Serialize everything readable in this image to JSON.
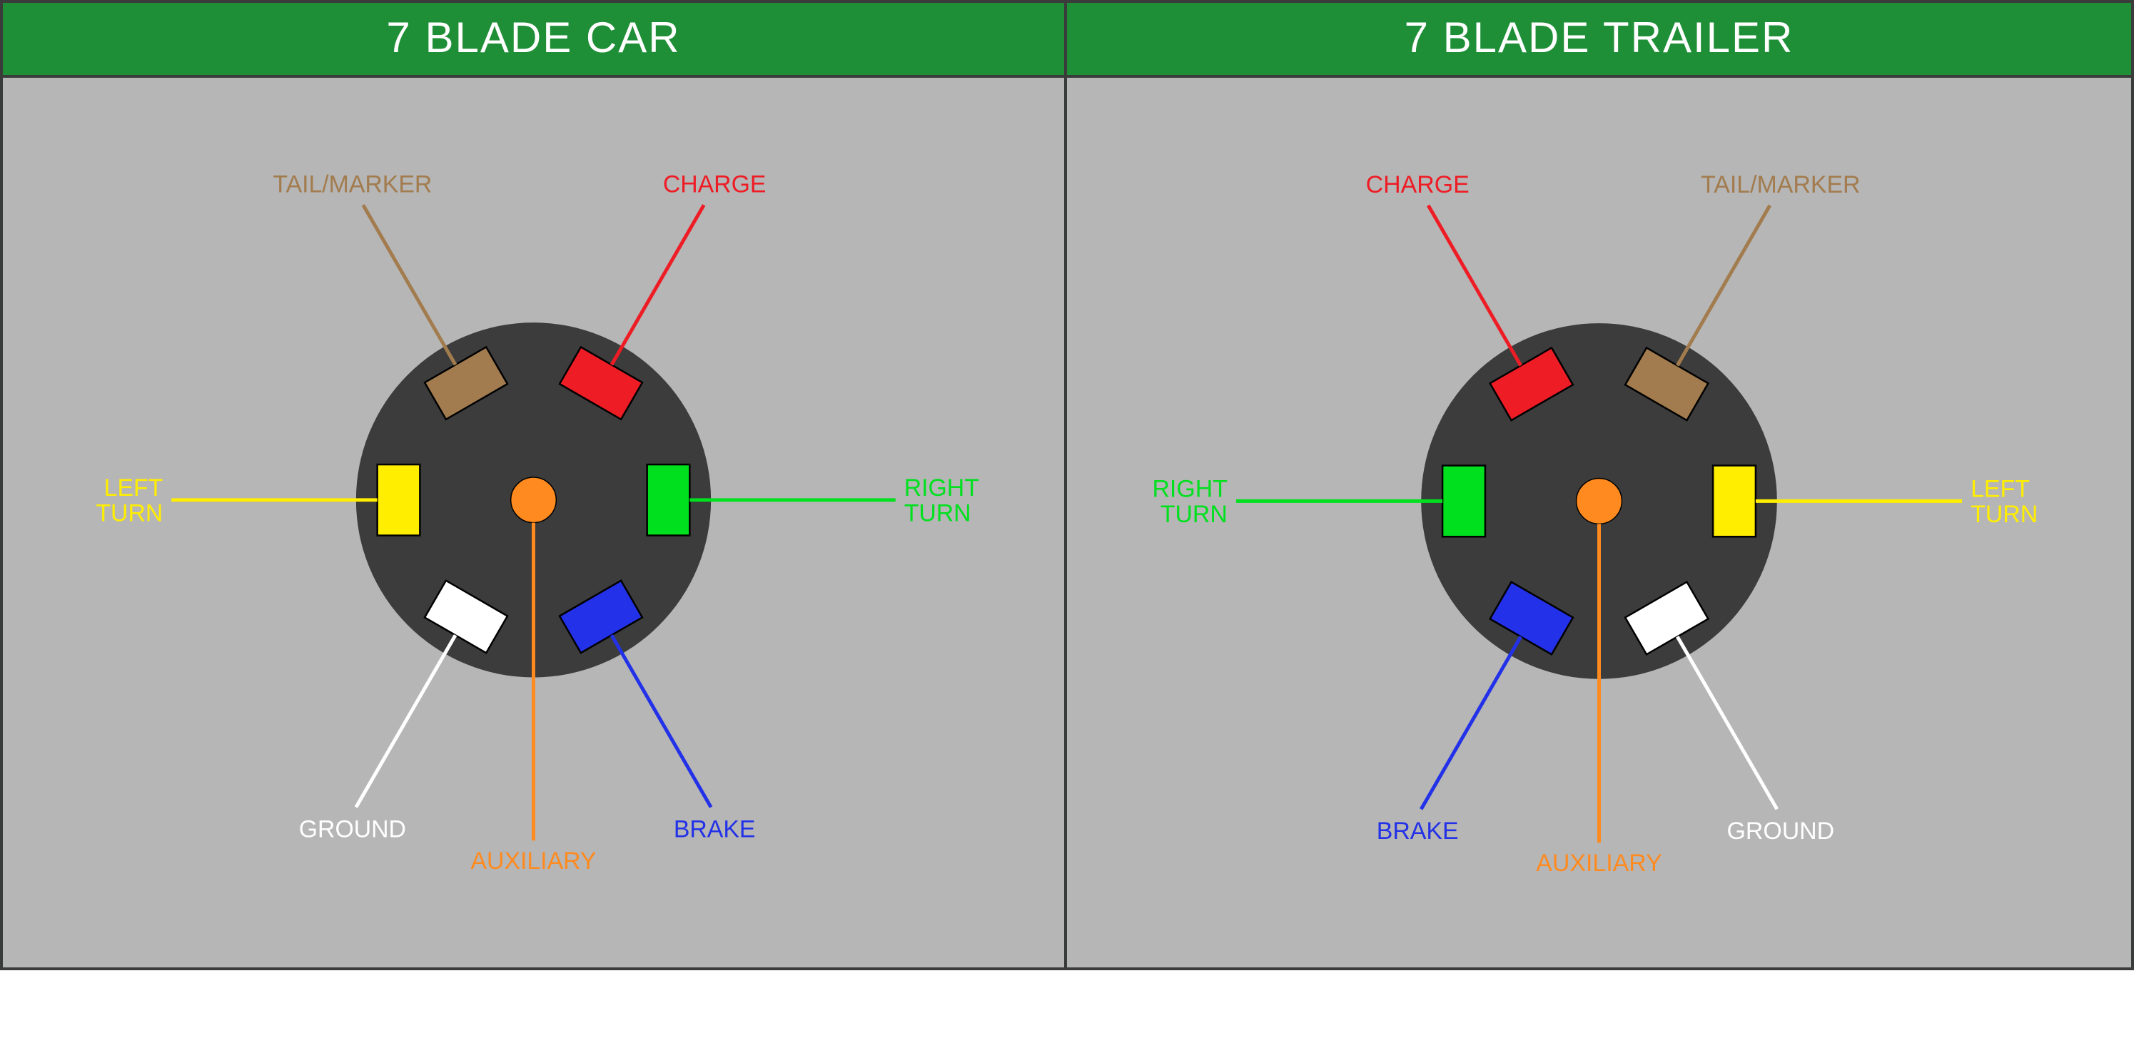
{
  "diagram": {
    "background": "#b6b6b6",
    "frame_color": "#3a3c3b",
    "header": {
      "bg": "#1f8f37",
      "fg": "#ffffff",
      "fontsize": 60
    },
    "connector": {
      "body_color": "#3b3c3b",
      "body_radius": 250,
      "blade_w": 100,
      "blade_h": 60,
      "blade_stroke": "#000000",
      "blade_stroke_w": 2.5,
      "line_w": 5,
      "label_fontsize": 34,
      "pins": [
        {
          "name": "tail_marker",
          "label": "TAIL/MARKER",
          "color": "#a27c4e",
          "angle_car": -120
        },
        {
          "name": "charge",
          "label": "CHARGE",
          "color": "#ee1c25",
          "angle_car": -60
        },
        {
          "name": "right_turn",
          "label": "RIGHT TURN",
          "color": "#00e01f",
          "angle_car": 0,
          "multiline": [
            "RIGHT",
            "TURN"
          ]
        },
        {
          "name": "brake",
          "label": "BRAKE",
          "color": "#2331e8",
          "angle_car": 60
        },
        {
          "name": "ground",
          "label": "GROUND",
          "color": "#ffffff",
          "angle_car": 120
        },
        {
          "name": "left_turn",
          "label": "LEFT TURN",
          "color": "#ffee00",
          "angle_car": 180,
          "multiline": [
            "LEFT",
            "TURN"
          ]
        }
      ],
      "center_pin": {
        "name": "auxiliary",
        "label": "AUXILIARY",
        "color": "#ff8a1f",
        "radius": 32
      }
    },
    "panels": [
      {
        "id": "car",
        "title": "7 BLADE CAR",
        "mirror": false
      },
      {
        "id": "trailer",
        "title": "7 BLADE TRAILER",
        "mirror": true
      }
    ]
  }
}
